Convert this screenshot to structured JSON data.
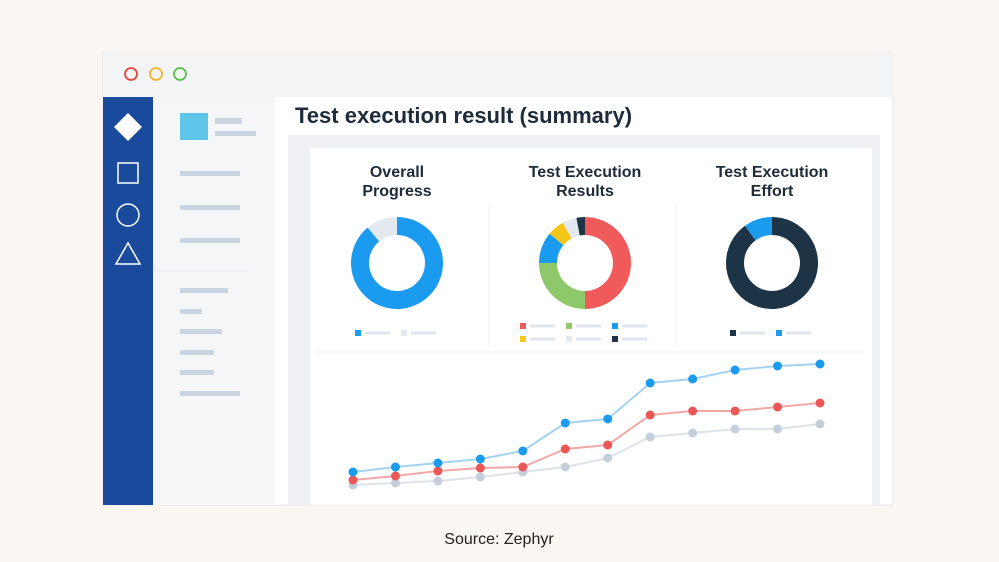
{
  "header": {
    "title": "Test execution result (summary)"
  },
  "panels": [
    {
      "type": "donut",
      "title_lines": [
        "Overall",
        "Progress"
      ],
      "values": [
        89,
        11
      ],
      "colors": [
        "#1a9bf0",
        "#e4e9f0"
      ]
    },
    {
      "type": "donut",
      "title_lines": [
        "Test Execution",
        "Results"
      ],
      "values": [
        50,
        25,
        11,
        6,
        5,
        3
      ],
      "colors": [
        "#f05a5a",
        "#8dc96b",
        "#1a9bf0",
        "#f5c518",
        "#e4e9f0",
        "#1d3346"
      ]
    },
    {
      "type": "donut",
      "title_lines": [
        "Test Execution",
        "Effort"
      ],
      "values": [
        90,
        10
      ],
      "colors": [
        "#1d3346",
        "#1a9bf0"
      ]
    }
  ],
  "trend": {
    "type": "line",
    "ylim": [
      0,
      150
    ],
    "series": [
      {
        "color": "#1a9bf0",
        "line_color": "#a5d3ef",
        "values": [
          28,
          33,
          37,
          41,
          49,
          77,
          81,
          117,
          121,
          130,
          134,
          136
        ]
      },
      {
        "color": "#eb5757",
        "line_color": "#f3a8a8",
        "values": [
          20,
          24,
          29,
          32,
          33,
          51,
          55,
          85,
          89,
          89,
          93,
          97
        ]
      },
      {
        "color": "#c4cfdb",
        "line_color": "#dde3ea",
        "values": [
          15,
          17,
          19,
          23,
          28,
          33,
          42,
          63,
          67,
          71,
          71,
          76
        ]
      }
    ]
  },
  "footer": {
    "source": "Source: Zephyr"
  }
}
